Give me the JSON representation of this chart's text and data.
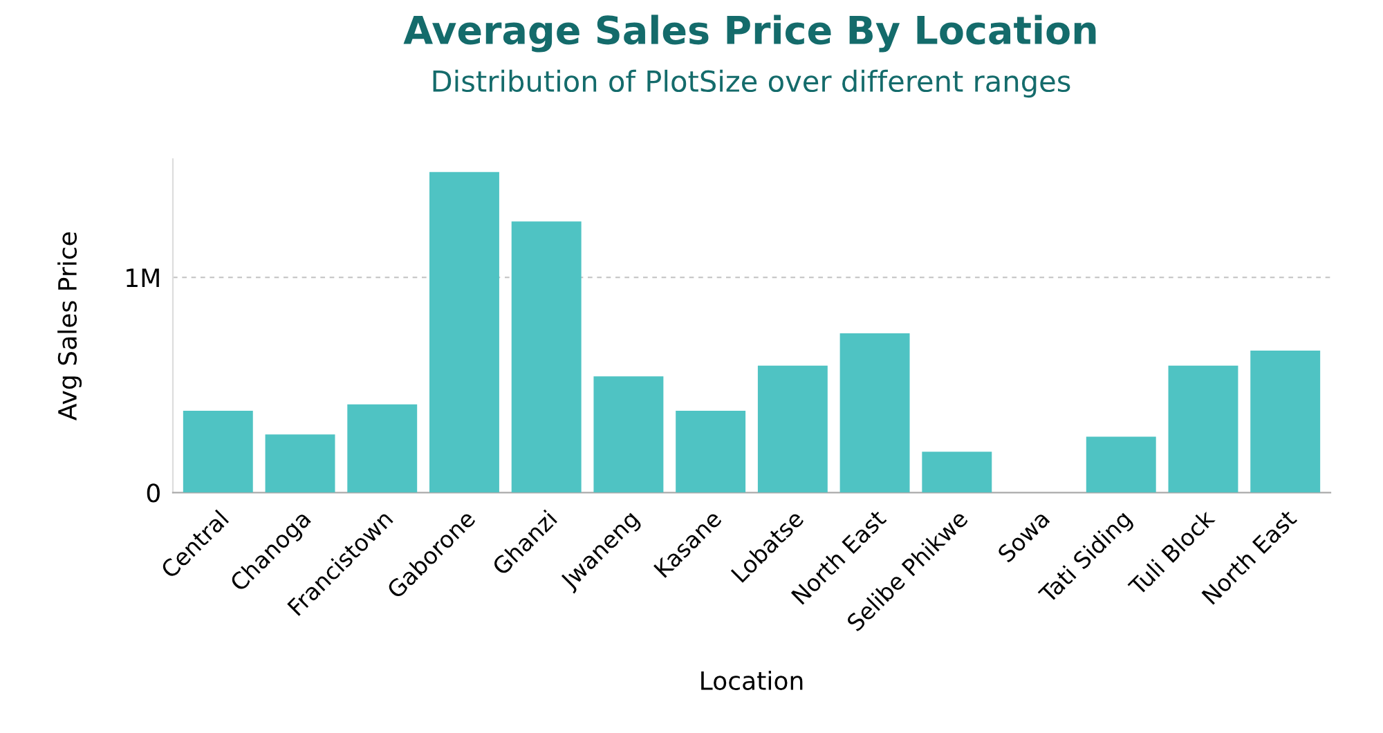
{
  "chart_data": {
    "type": "bar",
    "title": "Average Sales Price By Location",
    "subtitle": "Distribution of PlotSize over different ranges",
    "xlabel": "Location",
    "ylabel": "Avg Sales Price",
    "categories": [
      "Central",
      "Chanoga",
      "Francistown",
      "Gaborone",
      "Ghanzi",
      "Jwaneng",
      "Kasane",
      "Lobatse",
      "North East",
      "Selibe Phikwe",
      "Sowa",
      "Tati Siding",
      "Tuli Block",
      "North East"
    ],
    "values": [
      380000,
      270000,
      410000,
      1490000,
      1260000,
      540000,
      380000,
      590000,
      740000,
      190000,
      0,
      260000,
      590000,
      660000
    ],
    "color": "#4fc3c3",
    "ylim": [
      0,
      1550000
    ],
    "yticks": [
      0,
      {
        "value": 1000000,
        "label": "1M"
      }
    ],
    "grid": "y",
    "legend": false
  }
}
